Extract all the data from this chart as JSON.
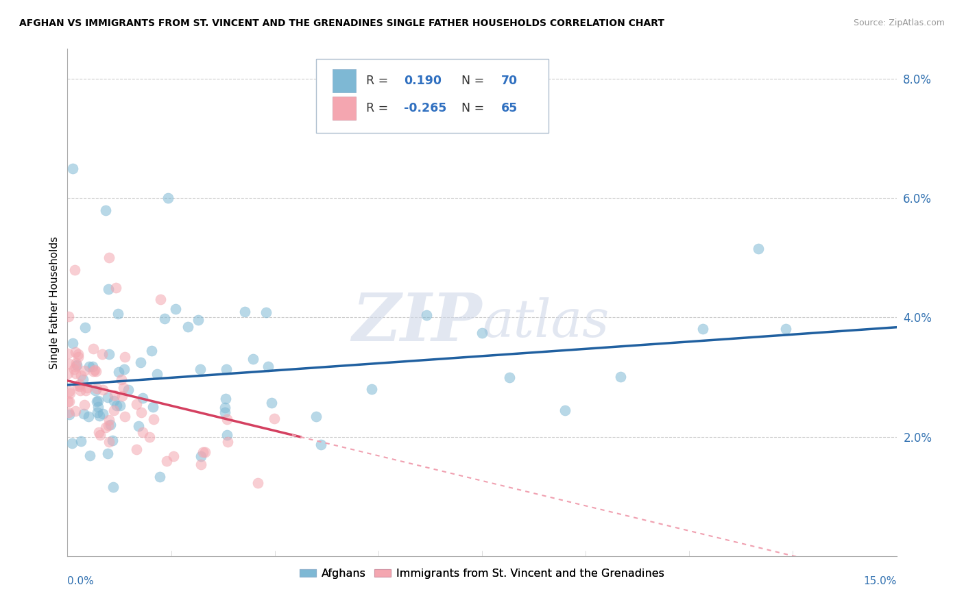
{
  "title": "AFGHAN VS IMMIGRANTS FROM ST. VINCENT AND THE GRENADINES SINGLE FATHER HOUSEHOLDS CORRELATION CHART",
  "source_text": "Source: ZipAtlas.com",
  "ylabel": "Single Father Households",
  "watermark_zip": "ZIP",
  "watermark_atlas": "atlas",
  "xlim": [
    0,
    15
  ],
  "ylim": [
    0,
    8.5
  ],
  "yticks": [
    0,
    2,
    4,
    6,
    8
  ],
  "ytick_labels": [
    "",
    "2.0%",
    "4.0%",
    "6.0%",
    "8.0%"
  ],
  "legend_bottom": [
    "Afghans",
    "Immigrants from St. Vincent and the Grenadines"
  ],
  "blue_color": "#7eb8d4",
  "pink_color": "#f4a6b0",
  "blue_line_color": "#2060a0",
  "pink_solid_color": "#d44060",
  "pink_dash_color": "#f0a0b0",
  "R_blue": 0.19,
  "N_blue": 70,
  "R_pink": -0.265,
  "N_pink": 65,
  "seed_blue": 7,
  "seed_pink": 13
}
